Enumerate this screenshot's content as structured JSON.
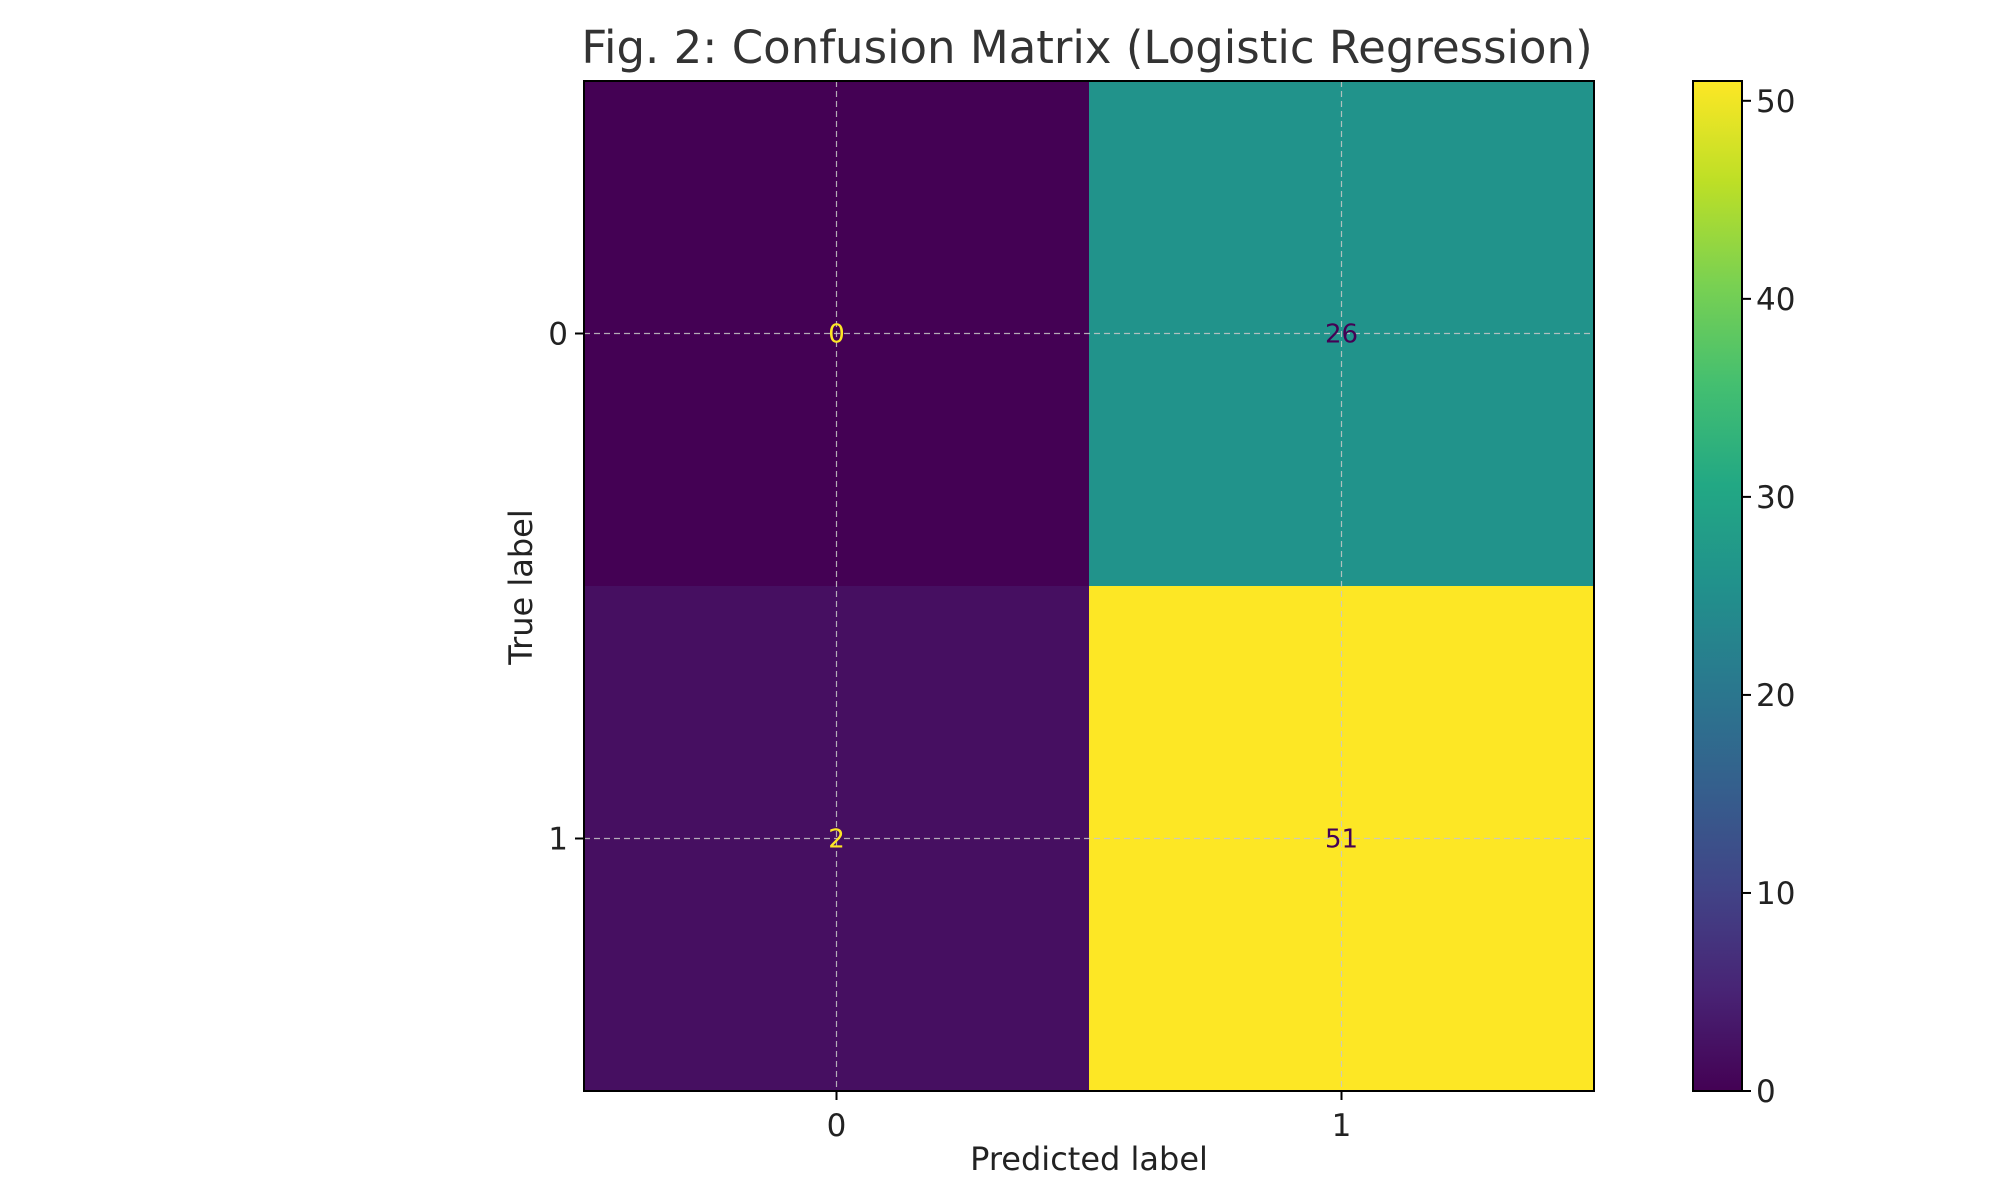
{
  "chart_data": {
    "type": "heatmap",
    "title": "Fig. 2: Confusion Matrix (Logistic Regression)",
    "xlabel": "Predicted label",
    "ylabel": "True label",
    "x_categories": [
      "0",
      "1"
    ],
    "y_categories": [
      "0",
      "1"
    ],
    "matrix": [
      [
        0,
        26
      ],
      [
        2,
        51
      ]
    ],
    "colormap": "viridis",
    "colorbar": {
      "range": [
        0,
        51
      ],
      "ticks": [
        0,
        10,
        20,
        30,
        40,
        50
      ],
      "tick_labels": [
        "0",
        "10",
        "20",
        "30",
        "40",
        "50"
      ]
    },
    "grid": true,
    "label_colors": {
      "on_dark": "#fde725",
      "on_light": "#440154"
    }
  }
}
